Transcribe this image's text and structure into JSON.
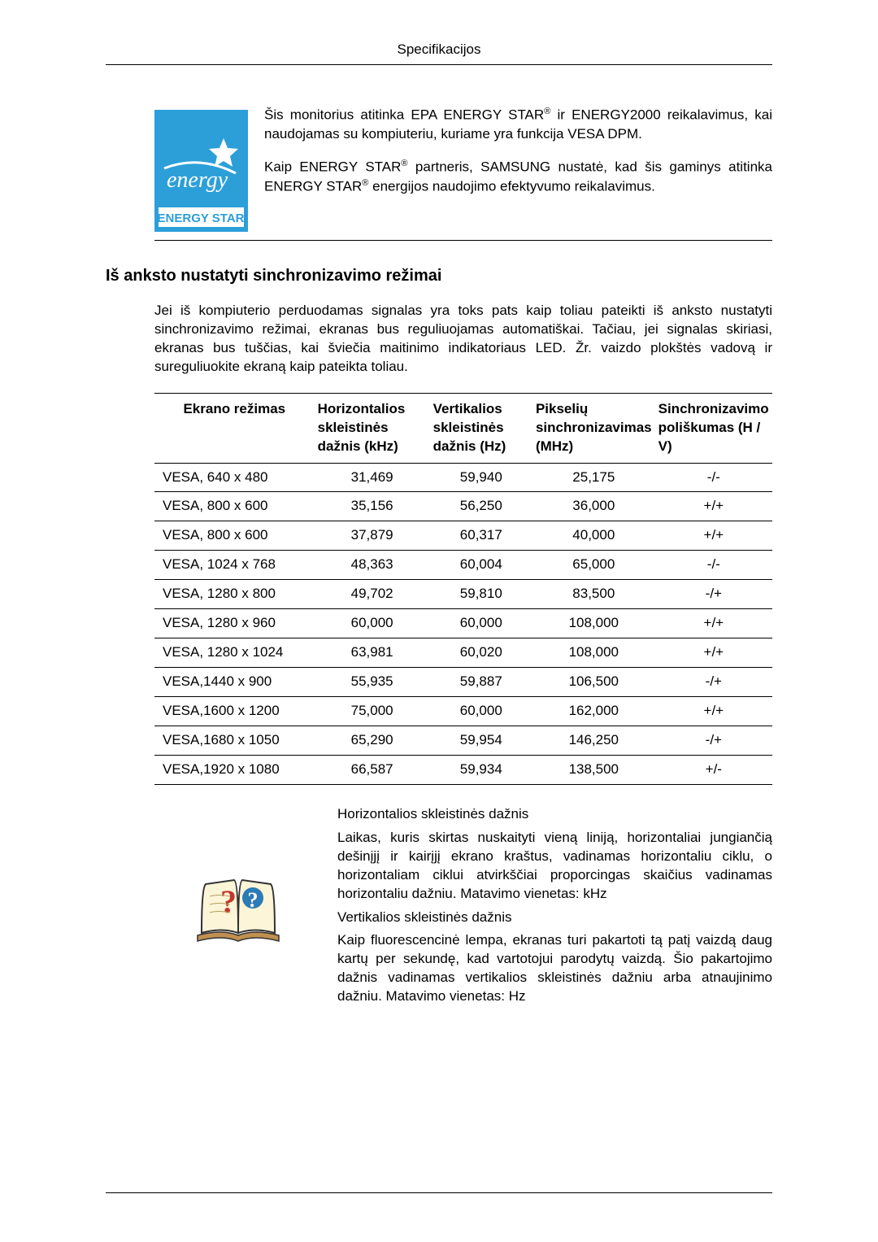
{
  "header": {
    "title": "Specifikacijos"
  },
  "intro": {
    "p1_part1": "Šis monitorius atitinka EPA ENERGY STAR",
    "p1_part2": " ir ENERGY2000 reikalavimus, kai naudojamas su kompiuteriu, kuriame yra funkcija VESA DPM.",
    "p2_part1": "Kaip ENERGY STAR",
    "p2_part2": " partneris, SAMSUNG nustatė, kad šis gaminys atitinka ENERGY STAR",
    "p2_part3": " energijos naudojimo efektyvumo reikalavimus.",
    "reg": "®"
  },
  "energy_logo": {
    "bg_color": "#2c9fd9",
    "script_color": "#ffffff",
    "star_color": "#ffffff",
    "bar_bg": "#ffffff",
    "bar_text_color": "#2c9fd9",
    "bar_text": "ENERGY STAR",
    "script_text": "energy"
  },
  "section": {
    "title": "Iš anksto nustatyti sinchronizavimo režimai",
    "intro": "Jei iš kompiuterio perduodamas signalas yra toks pats kaip toliau pateikti iš anksto nustatyti sinchronizavimo režimai, ekranas bus reguliuojamas automatiškai. Tačiau, jei signalas skiriasi, ekranas bus tuščias, kai šviečia maitinimo indikatoriaus LED. Žr. vaizdo plokštės vadovą ir sureguliuokite ekraną kaip pateikta toliau."
  },
  "table": {
    "columns": [
      "Ekrano režimas",
      "Horizontalios skleistinės dažnis (kHz)",
      "Vertikalios skleistinės dažnis (Hz)",
      "Pikselių sinchronizavimas (MHz)",
      "Sinchronizavimo poliškumas (H / V)"
    ],
    "col_widths": [
      "27%",
      "19%",
      "17%",
      "18%",
      "19%"
    ],
    "rows": [
      [
        "VESA, 640 x 480",
        "31,469",
        "59,940",
        "25,175",
        "-/-"
      ],
      [
        "VESA, 800 x 600",
        "35,156",
        "56,250",
        "36,000",
        "+/+"
      ],
      [
        "VESA, 800 x 600",
        "37,879",
        "60,317",
        "40,000",
        "+/+"
      ],
      [
        "VESA, 1024 x 768",
        "48,363",
        "60,004",
        "65,000",
        "-/-"
      ],
      [
        "VESA, 1280 x 800",
        "49,702",
        "59,810",
        "83,500",
        "-/+"
      ],
      [
        "VESA, 1280 x 960",
        "60,000",
        "60,000",
        "108,000",
        "+/+"
      ],
      [
        "VESA, 1280 x 1024",
        "63,981",
        "60,020",
        "108,000",
        "+/+"
      ],
      [
        "VESA,1440 x 900",
        "55,935",
        "59,887",
        "106,500",
        "-/+"
      ],
      [
        "VESA,1600 x 1200",
        "75,000",
        "60,000",
        "162,000",
        "+/+"
      ],
      [
        "VESA,1680 x 1050",
        "65,290",
        "59,954",
        "146,250",
        "-/+"
      ],
      [
        "VESA,1920 x 1080",
        "66,587",
        "59,934",
        "138,500",
        "+/-"
      ]
    ]
  },
  "definitions": {
    "h_title": "Horizontalios skleistinės dažnis",
    "h_body": "Laikas, kuris skirtas nuskaityti vieną liniją, horizontaliai jungiančią dešinįjį ir kairįjį ekrano kraštus, vadinamas horizontaliu ciklu, o horizontaliam ciklui atvirkščiai proporcingas skaičius vadinamas horizontaliu dažniu. Matavimo vienetas: kHz",
    "v_title": "Vertikalios skleistinės dažnis",
    "v_body": "Kaip fluorescencinė lempa, ekranas turi pakartoti tą patį vaizdą daug kartų per sekundę, kad vartotojui parodytų vaizdą. Šio pakartojimo dažnis vadinamas vertikalios skleistinės dažniu arba atnaujinimo dažniu. Matavimo vienetas: Hz"
  },
  "book_icon": {
    "page_color": "#fdf5d8",
    "outline_color": "#333333",
    "q_color": "#c0392b",
    "q_bg": "#2c7bb6"
  }
}
